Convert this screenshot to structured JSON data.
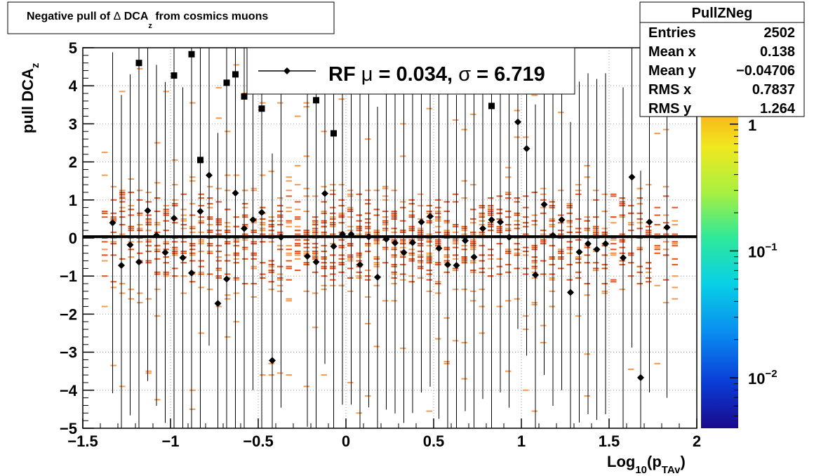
{
  "title": {
    "main": "Negative pull of ",
    "delta": "Δ",
    "var": " DCA",
    "sub": "z",
    "tail": " from cosmics muons"
  },
  "stats": {
    "name": "PullZNeg",
    "rows": [
      {
        "label": "Entries",
        "value": "2502"
      },
      {
        "label": "Mean x",
        "value": "0.138"
      },
      {
        "label": "Mean y",
        "value": "−0.04706"
      },
      {
        "label": "RMS x",
        "value": "0.7837"
      },
      {
        "label": "RMS y",
        "value": "1.264"
      }
    ]
  },
  "legend": {
    "prefix": "RF ",
    "mu": "μ",
    "mid": " =  0.034, ",
    "sigma": "σ",
    "tail": " =   6.719"
  },
  "axes": {
    "ylabel_main": "pull DCA",
    "ylabel_sub": "z",
    "xlabel_main": "Log",
    "xlabel_sub1": "10",
    "xlabel_mid": "(p",
    "xlabel_sub2": "TAv",
    "xlabel_tail": ")"
  },
  "colorbar": {
    "labels": [
      {
        "base": "1",
        "exp": "",
        "value": 1
      },
      {
        "base": "10",
        "exp": "−1",
        "value": 0.1
      },
      {
        "base": "10",
        "exp": "−2",
        "value": 0.01
      }
    ],
    "range": [
      0.004,
      4
    ]
  },
  "chart_data": {
    "type": "scatter",
    "xlim": [
      -1.5,
      2
    ],
    "ylim": [
      -5,
      5
    ],
    "xticks": [
      "−1.5",
      "−1",
      "−0.5",
      "0",
      "0.5",
      "1",
      "1.5",
      "2"
    ],
    "xtick_values": [
      -1.5,
      -1,
      -0.5,
      0,
      0.5,
      1,
      1.5,
      2
    ],
    "yticks": [
      "−5",
      "−4",
      "−3",
      "−2",
      "−1",
      "0",
      "1",
      "2",
      "3",
      "4",
      "5"
    ],
    "ytick_values": [
      -5,
      -4,
      -3,
      -2,
      -1,
      0,
      1,
      2,
      3,
      4,
      5
    ],
    "grid": true,
    "profile_points": [
      [
        -1.33,
        0.4
      ],
      [
        -1.28,
        -0.72
      ],
      [
        -1.23,
        -0.18
      ],
      [
        -1.18,
        -0.63
      ],
      [
        -1.13,
        0.72
      ],
      [
        -1.08,
        0.07
      ],
      [
        -1.03,
        -0.38
      ],
      [
        -0.98,
        0.52
      ],
      [
        -0.93,
        -0.52
      ],
      [
        -0.88,
        -0.92
      ],
      [
        -0.83,
        0.7
      ],
      [
        -0.78,
        1.65
      ],
      [
        -0.73,
        -1.72
      ],
      [
        -0.68,
        -1.08
      ],
      [
        -0.63,
        1.18
      ],
      [
        -0.58,
        0.25
      ],
      [
        -0.53,
        0.48
      ],
      [
        -0.48,
        0.67
      ],
      [
        -0.42,
        -3.22
      ],
      [
        -0.37,
        0.02
      ],
      [
        -0.22,
        -0.48
      ],
      [
        -0.17,
        -0.63
      ],
      [
        -0.12,
        1.17
      ],
      [
        -0.07,
        -0.22
      ],
      [
        -0.02,
        0.1
      ],
      [
        0.03,
        0.1
      ],
      [
        0.08,
        -0.7
      ],
      [
        0.13,
        0.03
      ],
      [
        0.18,
        -1.03
      ],
      [
        0.23,
        -0.03
      ],
      [
        0.28,
        -0.13
      ],
      [
        0.33,
        -0.38
      ],
      [
        0.38,
        -0.12
      ],
      [
        0.43,
        0.42
      ],
      [
        0.48,
        0.57
      ],
      [
        0.53,
        -0.27
      ],
      [
        0.58,
        -0.7
      ],
      [
        0.63,
        -0.72
      ],
      [
        0.68,
        -0.07
      ],
      [
        0.73,
        -0.5
      ],
      [
        0.78,
        0.25
      ],
      [
        0.83,
        0.48
      ],
      [
        0.88,
        0.42
      ],
      [
        0.93,
        0.02
      ],
      [
        0.98,
        3.05
      ],
      [
        1.03,
        2.35
      ],
      [
        1.08,
        -0.97
      ],
      [
        1.13,
        0.88
      ],
      [
        1.18,
        0.07
      ],
      [
        1.23,
        0.48
      ],
      [
        1.28,
        -1.43
      ],
      [
        1.33,
        -0.37
      ],
      [
        1.38,
        -0.15
      ],
      [
        1.43,
        -0.3
      ],
      [
        1.48,
        -0.15
      ],
      [
        1.58,
        -0.52
      ],
      [
        1.63,
        1.6
      ],
      [
        1.68,
        -3.67
      ],
      [
        1.73,
        0.42
      ],
      [
        1.83,
        0.28
      ]
    ],
    "overflow_points": [
      [
        -1.18,
        4.6
      ],
      [
        -0.98,
        4.27
      ],
      [
        -0.88,
        4.83
      ],
      [
        -0.83,
        2.05
      ],
      [
        -0.68,
        4.08
      ],
      [
        -0.63,
        4.3
      ],
      [
        -0.58,
        3.72
      ],
      [
        -0.48,
        3.4
      ],
      [
        -0.17,
        3.62
      ],
      [
        -0.07,
        2.75
      ],
      [
        0.83,
        3.47
      ]
    ],
    "fit_line": {
      "x": [
        -1.5,
        2
      ],
      "y": [
        0.034,
        0.034
      ]
    }
  },
  "colors": {
    "frame": "#000000",
    "grid": "#9a9a9a",
    "cell": "#e8531c",
    "cell_light": "#f59a4e",
    "text": "#000000"
  }
}
